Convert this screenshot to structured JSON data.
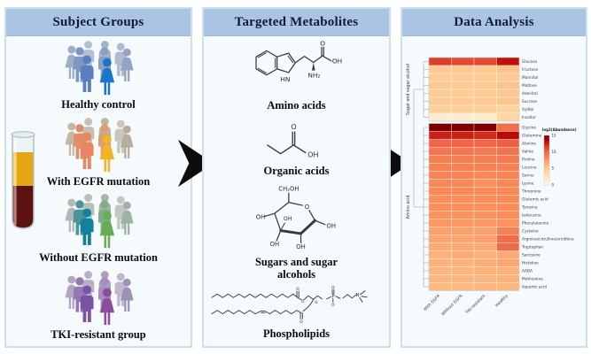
{
  "subject_groups": {
    "title": "Subject Groups",
    "groups": [
      {
        "label": "Healthy control",
        "palette": [
          "#b3bfd1",
          "#a6b4c9",
          "#9dadc7",
          "#aebad0",
          "#93a5c4",
          "#7e97c2",
          "#8aa0c6",
          "#5a7fc0",
          "#1b76c8"
        ]
      },
      {
        "label": "With EGFR mutation",
        "palette": [
          "#c6c0b1",
          "#bab4a6",
          "#c2b8a4",
          "#ccc6b8",
          "#b5ae9e",
          "#e08e67",
          "#d9a06e",
          "#e8875f",
          "#f3b32b"
        ]
      },
      {
        "label": "Without EGFR mutation",
        "palette": [
          "#b7bfb7",
          "#a9b4ab",
          "#b1bab1",
          "#c0c8c0",
          "#9eb2a6",
          "#49939f",
          "#7fae8a",
          "#12829b",
          "#6aab58"
        ]
      },
      {
        "label": "TKI-resistant group",
        "palette": [
          "#b7b0c6",
          "#a9a1bd",
          "#b1a7c4",
          "#c0b8cc",
          "#9e92b8",
          "#9577b4",
          "#a98cc0",
          "#7b53a4",
          "#8f4c9f"
        ]
      }
    ],
    "sample_icon": "blood-collection-tube",
    "tube_colors": {
      "plasma": "#e2a713",
      "blood": "#5c1310",
      "glass": "#b7c2c7"
    }
  },
  "metabolites": {
    "title": "Targeted Metabolites",
    "items": [
      {
        "label": "Amino acids",
        "atoms": [
          "O",
          "OH",
          "NH₂",
          "HN"
        ]
      },
      {
        "label": "Organic acids",
        "atoms": [
          "O",
          "OH"
        ]
      },
      {
        "label": "Sugars and sugar alcohols",
        "atoms": [
          "CH₂OH",
          "O",
          "OH",
          "OH",
          "OH",
          "OH",
          "OH"
        ]
      },
      {
        "label": "Phospholipids",
        "atoms": [
          "O",
          "O",
          "O",
          "O",
          "P",
          "O",
          "N⁺",
          "H"
        ]
      }
    ]
  },
  "analysis": {
    "title": "Data Analysis"
  },
  "chart_data": {
    "type": "heatmap",
    "columns": [
      "With EGFR",
      "Without EGFR",
      "TKI-resistant",
      "Healthy"
    ],
    "legend": {
      "title": "log2(Abundance)",
      "ticks": [
        15,
        10,
        5,
        0
      ],
      "min": 0,
      "max": 15,
      "colormap": "OrRd (white-orange-dark red)"
    },
    "row_groups": [
      {
        "name": "Sugar and sugar alcohol",
        "rows": [
          {
            "label": "Glucose",
            "values": [
              11.5,
              11,
              11,
              13
            ]
          },
          {
            "label": "Fructose",
            "values": [
              5,
              5,
              5,
              5.5
            ]
          },
          {
            "label": "Mannitol",
            "values": [
              4.6,
              4.6,
              4.6,
              5
            ]
          },
          {
            "label": "Maltose",
            "values": [
              5,
              4.8,
              4.8,
              5.4
            ]
          },
          {
            "label": "Adonitol",
            "values": [
              4.6,
              4.6,
              4.6,
              5
            ]
          },
          {
            "label": "Sucrose",
            "values": [
              4.8,
              4.8,
              4.8,
              5.2
            ]
          },
          {
            "label": "Xylitol",
            "values": [
              4.4,
              4.4,
              4.4,
              4
            ]
          },
          {
            "label": "Inositol",
            "values": [
              1.5,
              1.5,
              1.5,
              3.8
            ]
          }
        ]
      },
      {
        "name": "Amino acid",
        "rows": [
          {
            "label": "Glycine",
            "values": [
              15,
              15,
              15,
              9.5
            ]
          },
          {
            "label": "Glutamine",
            "values": [
              12.5,
              12.5,
              12.2,
              13.2
            ]
          },
          {
            "label": "Alanine",
            "values": [
              10,
              10,
              9.8,
              10.2
            ]
          },
          {
            "label": "Valine",
            "values": [
              9.2,
              9.2,
              9,
              9.4
            ]
          },
          {
            "label": "Proline",
            "values": [
              8.8,
              8.8,
              8.8,
              9
            ]
          },
          {
            "label": "Leucine",
            "values": [
              8.6,
              8.6,
              8.6,
              8.6
            ]
          },
          {
            "label": "Serine",
            "values": [
              8.5,
              8.5,
              8.2,
              8.5
            ]
          },
          {
            "label": "Lysine",
            "values": [
              8.3,
              8.3,
              7.8,
              8.3
            ]
          },
          {
            "label": "Threonine",
            "values": [
              8.2,
              8.2,
              8,
              8.2
            ]
          },
          {
            "label": "Glutamic acid",
            "values": [
              8,
              8,
              8,
              8.2
            ]
          },
          {
            "label": "Tyrosine",
            "values": [
              7.9,
              7.9,
              7.9,
              8
            ]
          },
          {
            "label": "Isoleucine",
            "values": [
              7.8,
              7.8,
              7.8,
              8
            ]
          },
          {
            "label": "Phenylalanine",
            "values": [
              7.6,
              7.6,
              7.6,
              7.8
            ]
          },
          {
            "label": "Cysteine",
            "values": [
              7.2,
              7.2,
              7.2,
              8.6
            ]
          },
          {
            "label": "Arginine/citrulline/ornithine",
            "values": [
              7,
              7,
              7.2,
              9.6
            ]
          },
          {
            "label": "Tryptophan",
            "values": [
              6.8,
              6.8,
              6.8,
              9.8
            ]
          },
          {
            "label": "Sarcosine",
            "values": [
              6.4,
              6.8,
              6.4,
              6.8
            ]
          },
          {
            "label": "Histidine",
            "values": [
              6.4,
              6.4,
              6.6,
              7
            ]
          },
          {
            "label": "AABA",
            "values": [
              6.2,
              6.2,
              6.4,
              6.4
            ]
          },
          {
            "label": "Methionine",
            "values": [
              6.2,
              6.2,
              6.2,
              6.4
            ]
          },
          {
            "label": "Aspartic acid",
            "values": [
              6,
              6,
              6.2,
              6.2
            ]
          }
        ]
      }
    ]
  }
}
